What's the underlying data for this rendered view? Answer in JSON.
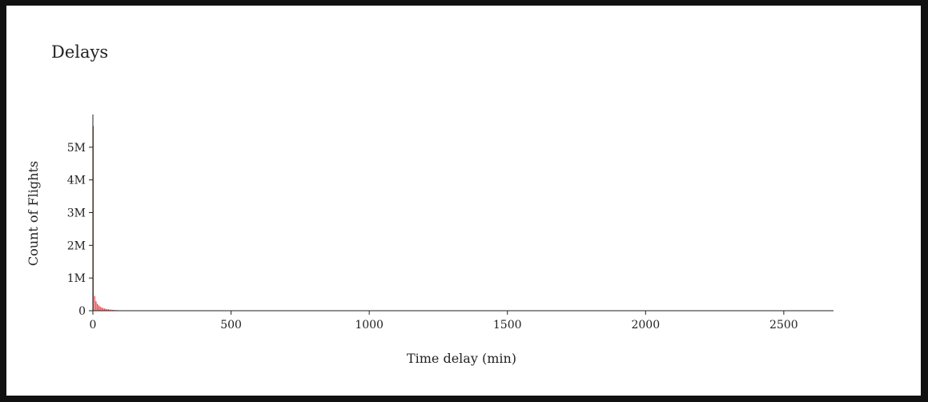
{
  "title": "Delays",
  "chart_data": {
    "type": "bar",
    "xlabel": "Time delay (min)",
    "ylabel": "Count of Flights",
    "xlim": [
      0,
      2680
    ],
    "ylim": [
      0,
      6000000
    ],
    "x_ticks": [
      {
        "value": 0,
        "label": "0"
      },
      {
        "value": 500,
        "label": "500"
      },
      {
        "value": 1000,
        "label": "1000"
      },
      {
        "value": 1500,
        "label": "1500"
      },
      {
        "value": 2000,
        "label": "2000"
      },
      {
        "value": 2500,
        "label": "2500"
      }
    ],
    "y_ticks": [
      {
        "value": 0,
        "label": "0"
      },
      {
        "value": 1000000,
        "label": "1M"
      },
      {
        "value": 2000000,
        "label": "2M"
      },
      {
        "value": 3000000,
        "label": "3M"
      },
      {
        "value": 4000000,
        "label": "4M"
      },
      {
        "value": 5000000,
        "label": "5M"
      }
    ],
    "bin_width": 5,
    "bar_color": "#e31a1c",
    "series": [
      {
        "x": [
          0,
          5,
          10,
          15,
          20,
          25,
          30,
          35,
          40,
          45,
          50,
          55,
          60,
          65,
          70,
          75,
          80,
          85,
          90,
          95,
          100,
          105,
          110,
          115,
          120,
          125,
          130,
          135,
          140,
          145,
          150,
          155,
          160,
          165,
          170,
          175,
          180
        ],
        "values": [
          5650000,
          450000,
          290000,
          210000,
          160000,
          125000,
          100000,
          82000,
          68000,
          57000,
          48000,
          41000,
          35000,
          30000,
          26000,
          22000,
          19000,
          16500,
          14500,
          12500,
          11000,
          9500,
          8500,
          7500,
          6500,
          5800,
          5100,
          4500,
          4000,
          3500,
          3100,
          2700,
          2400,
          2100,
          1800,
          1600,
          1400
        ]
      }
    ],
    "grid": false,
    "legend": "none"
  }
}
